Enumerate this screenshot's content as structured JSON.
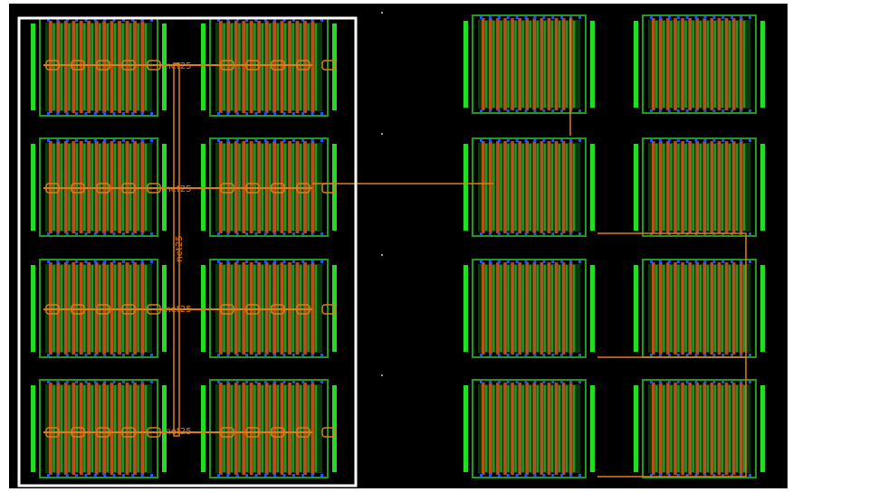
{
  "layout_view": {
    "background_color": "#000000",
    "page_color": "#ffffff",
    "colors": {
      "diffusion": "#1f9a1f",
      "diffusion_bright": "#22dd22",
      "poly": "#d9541c",
      "metal": "#e07b1a",
      "via": "#2050ff",
      "selection": "#ffffff"
    },
    "left_block": {
      "net_labels": [
        "net25",
        "net25",
        "net25",
        "net25"
      ],
      "vertical_net_label": "net25"
    },
    "right_block": {
      "connection_label": ""
    }
  }
}
